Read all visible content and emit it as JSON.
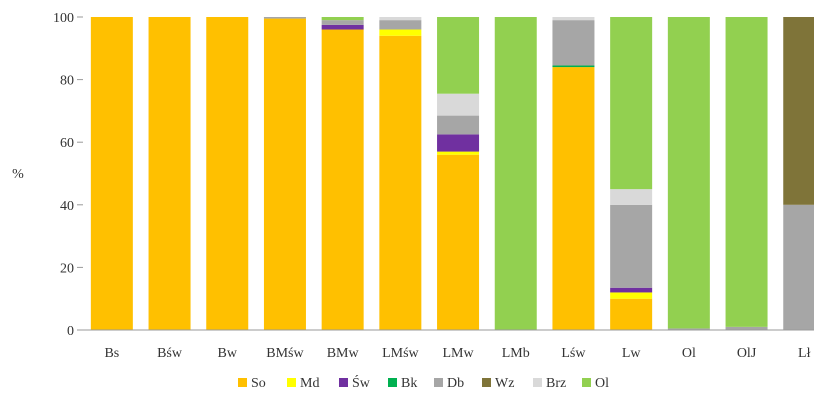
{
  "chart_data": {
    "type": "bar",
    "stacked": true,
    "title": "",
    "xlabel": "",
    "ylabel": "%",
    "ylim": [
      0,
      100
    ],
    "yticks": [
      0,
      20,
      40,
      60,
      80,
      100
    ],
    "grid": false,
    "legend_position": "bottom",
    "categories": [
      "Bs",
      "Bśw",
      "Bw",
      "BMśw",
      "BMw",
      "LMśw",
      "LMw",
      "LMb",
      "Lśw",
      "Lw",
      "Ol",
      "OlJ",
      "Lł"
    ],
    "series": [
      {
        "name": "So",
        "color": "#ffc000",
        "values": [
          100,
          100,
          100,
          99.5,
          96,
          94,
          56,
          0,
          84,
          10,
          0,
          0,
          0
        ]
      },
      {
        "name": "Md",
        "color": "#ffff00",
        "values": [
          0,
          0,
          0,
          0,
          0,
          2,
          1,
          0,
          0,
          2,
          0,
          0,
          0
        ]
      },
      {
        "name": "Św",
        "color": "#7030a0",
        "values": [
          0,
          0,
          0,
          0,
          1.5,
          0,
          5.5,
          0,
          0,
          1.5,
          0,
          0,
          0
        ]
      },
      {
        "name": "Bk",
        "color": "#00b050",
        "values": [
          0,
          0,
          0,
          0,
          0,
          0,
          0,
          0,
          0.5,
          0,
          0,
          0,
          0
        ]
      },
      {
        "name": "Db",
        "color": "#a6a6a6",
        "values": [
          0,
          0,
          0,
          0.5,
          1.5,
          3,
          6,
          0,
          14.5,
          26.5,
          0.5,
          1,
          40
        ]
      },
      {
        "name": "Wz",
        "color": "#7f7439",
        "values": [
          0,
          0,
          0,
          0,
          0,
          0,
          0,
          0,
          0,
          0,
          0,
          0,
          60
        ]
      },
      {
        "name": "Brz",
        "color": "#d9d9d9",
        "values": [
          0,
          0,
          0,
          0,
          0,
          1,
          7,
          0,
          1,
          5,
          0,
          0,
          0
        ]
      },
      {
        "name": "Ol",
        "color": "#92d050",
        "values": [
          0,
          0,
          0,
          0,
          1,
          0,
          24.5,
          100,
          0,
          55,
          99.5,
          99,
          0
        ]
      }
    ]
  }
}
